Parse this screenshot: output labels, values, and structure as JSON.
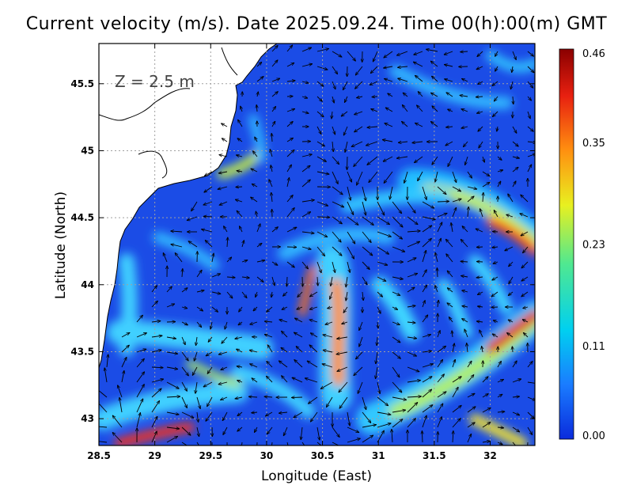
{
  "title": "Current velocity (m/s). Date 2025.09.24. Time 00(h):00(m) GMT",
  "depth_label": "Z = 2.5 m",
  "x_axis": {
    "label": "Longitude (East)",
    "range": [
      28.5,
      32.4
    ],
    "ticks": [
      "28.5",
      "29",
      "29.5",
      "30",
      "30.5",
      "31",
      "31.5",
      "32"
    ],
    "tick_values": [
      28.5,
      29,
      29.5,
      30,
      30.5,
      31,
      31.5,
      32
    ]
  },
  "y_axis": {
    "label": "Latitude (North)",
    "range": [
      42.8,
      45.8
    ],
    "ticks": [
      "43",
      "43.5",
      "44",
      "44.5",
      "45",
      "45.5"
    ],
    "tick_values": [
      43,
      43.5,
      44,
      44.5,
      45,
      45.5
    ]
  },
  "colorbar": {
    "min": 0.0,
    "max": 0.46,
    "labels": [
      "0.46",
      "0.35",
      "0.23",
      "0.11",
      "0.00"
    ],
    "label_values": [
      0.46,
      0.35,
      0.23,
      0.11,
      0.0
    ],
    "colors": [
      "#0a2bdc",
      "#1a7cff",
      "#00d0f0",
      "#50e890",
      "#e8f020",
      "#ff9010",
      "#e82010",
      "#8a0000"
    ]
  },
  "colors": {
    "background_sea": "#1b4ce6",
    "land": "#ffffff",
    "grid": "#a0a0a0",
    "arrow": "#000000"
  }
}
